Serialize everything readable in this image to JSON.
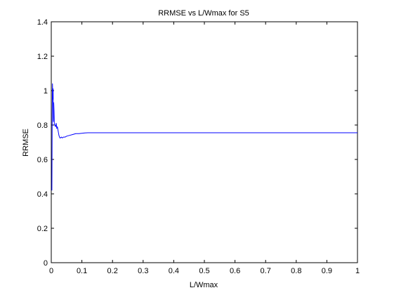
{
  "chart_data": {
    "type": "line",
    "title": "RRMSE vs L/Wmax for S5",
    "xlabel": "L/Wmax",
    "ylabel": "RRMSE",
    "xlim": [
      0,
      1
    ],
    "ylim": [
      0,
      1.4
    ],
    "xticks": [
      0,
      0.1,
      0.2,
      0.3,
      0.4,
      0.5,
      0.6,
      0.7,
      0.8,
      0.9,
      1
    ],
    "yticks": [
      0,
      0.2,
      0.4,
      0.6,
      0.8,
      1,
      1.2,
      1.4
    ],
    "xtick_labels": [
      "0",
      "0.1",
      "0.2",
      "0.3",
      "0.4",
      "0.5",
      "0.6",
      "0.7",
      "0.8",
      "0.9",
      "1"
    ],
    "ytick_labels": [
      "0",
      "0.2",
      "0.4",
      "0.6",
      "0.8",
      "1",
      "1.2",
      "1.4"
    ],
    "grid": false,
    "series": [
      {
        "color": "#0000ff",
        "x": [
          0.002,
          0.003,
          0.004,
          0.005,
          0.006,
          0.007,
          0.008,
          0.009,
          0.01,
          0.012,
          0.014,
          0.016,
          0.018,
          0.02,
          0.022,
          0.025,
          0.028,
          0.03,
          0.033,
          0.036,
          0.04,
          0.045,
          0.05,
          0.06,
          0.07,
          0.08,
          0.09,
          0.1,
          0.11,
          0.12,
          0.2,
          0.3,
          0.4,
          0.5,
          0.6,
          0.7,
          0.8,
          0.9,
          1.0
        ],
        "y": [
          0.42,
          0.86,
          1.04,
          0.95,
          1.01,
          0.82,
          0.93,
          0.88,
          0.8,
          0.8,
          0.79,
          0.81,
          0.78,
          0.79,
          0.77,
          0.74,
          0.725,
          0.725,
          0.73,
          0.725,
          0.73,
          0.73,
          0.735,
          0.74,
          0.745,
          0.75,
          0.75,
          0.752,
          0.754,
          0.755,
          0.755,
          0.755,
          0.755,
          0.755,
          0.755,
          0.755,
          0.755,
          0.755,
          0.755
        ]
      }
    ]
  }
}
